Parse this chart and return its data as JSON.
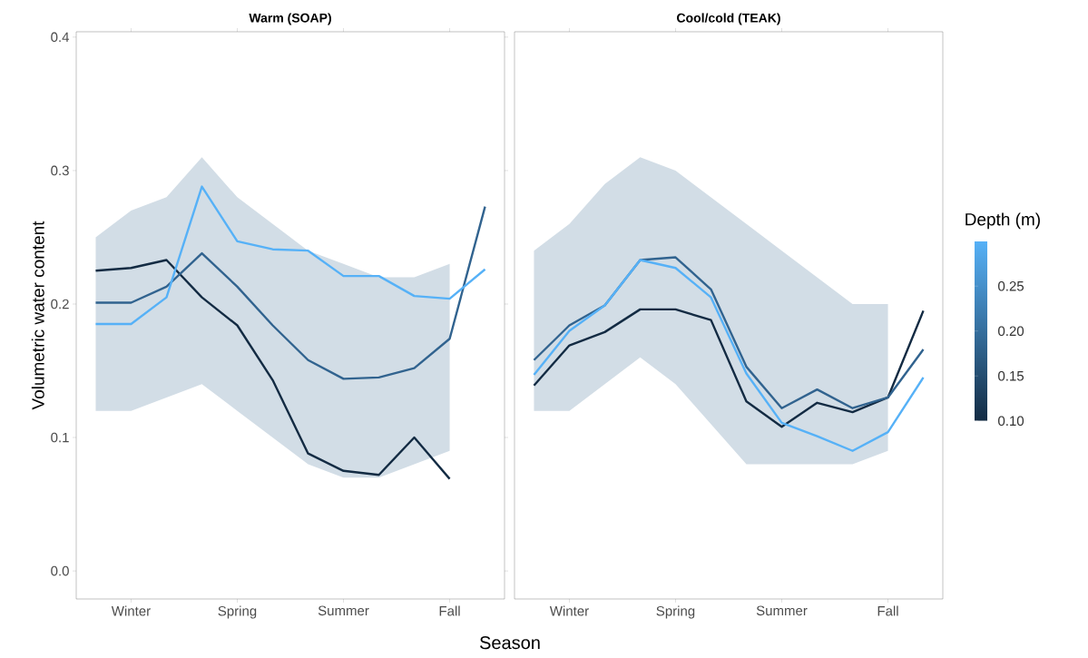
{
  "chart_data": [
    {
      "type": "line",
      "title": "Warm (SOAP)",
      "xlabel": "Season",
      "ylabel": "Volumetric water content",
      "categories": [
        null,
        "Winter",
        null,
        null,
        "Spring",
        null,
        null,
        "Summer",
        null,
        null,
        "Fall",
        null
      ],
      "ylim": [
        -0.021,
        0.404
      ],
      "yticks": [
        {
          "value": 0,
          "label": "0.0"
        },
        0.1,
        0.2,
        0.3,
        0.4
      ],
      "series": [
        {
          "color": "#132b43",
          "values": [
            0.225,
            0.227,
            0.233,
            0.205,
            0.184,
            0.143,
            0.088,
            0.075,
            0.072,
            0.1,
            0.069,
            null
          ]
        },
        {
          "color": "#31638f",
          "values": [
            0.201,
            0.201,
            0.213,
            0.238,
            0.213,
            0.184,
            0.158,
            0.144,
            0.145,
            0.152,
            0.174,
            0.273
          ],
          "lower": [
            0.12,
            0.12,
            0.13,
            0.14,
            0.12,
            0.1,
            0.08,
            0.07,
            0.07,
            0.08,
            0.09,
            null
          ],
          "upper": [
            0.25,
            0.27,
            0.28,
            0.31,
            0.28,
            0.26,
            0.24,
            0.23,
            0.22,
            0.22,
            0.23,
            null
          ]
        },
        {
          "color": "#56b1f7",
          "values": [
            0.185,
            0.185,
            0.205,
            0.288,
            0.247,
            0.241,
            0.24,
            0.221,
            0.221,
            0.206,
            0.204,
            0.226
          ]
        }
      ]
    },
    {
      "type": "line",
      "title": "Cool/cold (TEAK)",
      "clabel": "Depth (m)",
      "tick_labels": "x",
      "categories": [
        null,
        "Winter",
        null,
        null,
        "Spring",
        null,
        null,
        "Summer",
        null,
        null,
        "Fall",
        null
      ],
      "ylim": [
        -0.021,
        0.404
      ],
      "clim": [
        0.1,
        0.3
      ],
      "cticks": [
        {
          "value": 0.1,
          "label": "0.10"
        },
        0.15,
        {
          "value": 0.2,
          "label": "0.20"
        },
        0.25
      ],
      "series": [
        {
          "color": "#132b43",
          "values": [
            0.139,
            0.169,
            0.179,
            0.196,
            0.196,
            0.188,
            0.127,
            0.108,
            0.126,
            0.119,
            0.13,
            0.195
          ]
        },
        {
          "color": "#31638f",
          "values": [
            0.158,
            0.184,
            0.199,
            0.233,
            0.235,
            0.211,
            0.153,
            0.122,
            0.136,
            0.122,
            0.13,
            0.166
          ],
          "lower": [
            0.12,
            0.12,
            0.14,
            0.16,
            0.14,
            0.11,
            0.08,
            0.08,
            0.08,
            0.08,
            0.09,
            null
          ],
          "upper": [
            0.24,
            0.26,
            0.29,
            0.31,
            0.3,
            0.28,
            0.26,
            0.24,
            0.22,
            0.2,
            0.2,
            null
          ]
        },
        {
          "color": "#56b1f7",
          "values": [
            0.147,
            0.18,
            0.199,
            0.233,
            0.227,
            0.205,
            0.148,
            0.111,
            0.101,
            0.09,
            0.104,
            0.145
          ]
        }
      ]
    }
  ]
}
